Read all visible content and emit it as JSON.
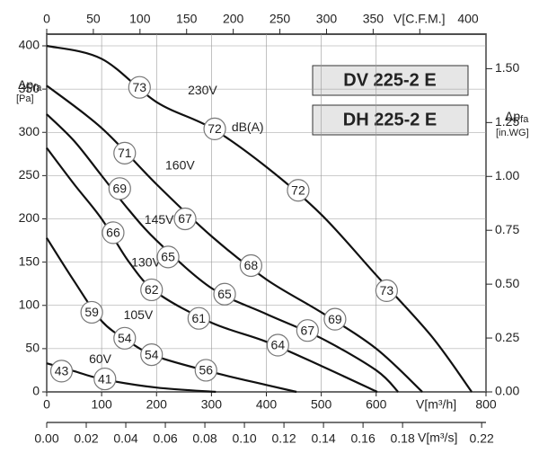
{
  "chart_data": {
    "type": "line",
    "xlim": [
      0,
      800
    ],
    "xticks": [
      0,
      100,
      200,
      300,
      400,
      500,
      600,
      800
    ],
    "xlabel": "V[m³/h]",
    "x2lim": [
      0,
      471
    ],
    "x2ticks": [
      0,
      50,
      100,
      150,
      200,
      250,
      300,
      350,
      400
    ],
    "x2label": "V[C.F.M.]",
    "x3lim": [
      0,
      0.2222
    ],
    "x3ticks": [
      {
        "value": 0,
        "label": "0.00"
      },
      0.02,
      0.04,
      0.06,
      0.08,
      {
        "value": 0.1,
        "label": "0.10"
      },
      0.12,
      0.14,
      0.16,
      0.18,
      0.22
    ],
    "x3label": "V[m³/s]",
    "ylim": [
      0,
      400
    ],
    "yticks": [
      0,
      50,
      100,
      150,
      200,
      250,
      300,
      350,
      400
    ],
    "ylabel": {
      "main": "Δp",
      "sub": "fa",
      "unit": "[Pa]"
    },
    "y2lim": [
      0,
      1.606
    ],
    "y2ticks": [
      {
        "value": 0,
        "label": "0.00"
      },
      0.25,
      {
        "value": 0.5,
        "label": "0.50"
      },
      0.75,
      {
        "value": 1,
        "label": "1.00"
      },
      1.25,
      {
        "value": 1.5,
        "label": "1.50"
      }
    ],
    "y2label": {
      "main": "Δp",
      "sub": "fa",
      "unit": "[in.WG]"
    },
    "grid": true,
    "color": "#111111",
    "models": [
      "DV 225-2 E",
      "DH 225-2 E"
    ],
    "series": [
      {
        "name": "230V",
        "name_at": [
          257,
          348
        ],
        "x": [
          0,
          100,
          200,
          300,
          400,
          500,
          600,
          700,
          774
        ],
        "values": [
          400,
          385,
          335,
          305,
          260,
          205,
          135,
          65,
          0
        ]
      },
      {
        "name": "160V",
        "name_at": [
          216,
          261
        ],
        "x": [
          0,
          100,
          200,
          300,
          400,
          500,
          600,
          684
        ],
        "values": [
          354,
          305,
          240,
          180,
          130,
          92,
          50,
          0
        ]
      },
      {
        "name": "145V",
        "name_at": [
          178,
          198
        ],
        "x": [
          0,
          50,
          100,
          150,
          200,
          300,
          400,
          500,
          600,
          640
        ],
        "values": [
          321,
          290,
          250,
          210,
          175,
          120,
          90,
          62,
          25,
          0
        ]
      },
      {
        "name": "130V",
        "name_at": [
          154,
          149
        ],
        "x": [
          0,
          50,
          100,
          150,
          200,
          300,
          400,
          500,
          602
        ],
        "values": [
          282,
          240,
          200,
          150,
          115,
          80,
          58,
          30,
          0
        ]
      },
      {
        "name": "105V",
        "name_at": [
          140,
          88
        ],
        "x": [
          0,
          50,
          100,
          150,
          200,
          300,
          400,
          455
        ],
        "values": [
          178,
          128,
          82,
          58,
          41,
          23,
          8,
          0
        ]
      },
      {
        "name": "60V",
        "name_at": [
          77,
          37
        ],
        "x": [
          0,
          50,
          100,
          200,
          308
        ],
        "values": [
          33,
          24,
          15,
          5,
          0
        ]
      }
    ],
    "unit_note": {
      "text": "dB(A)",
      "x": 366,
      "y": 305
    },
    "sound_levels": [
      {
        "value": 73,
        "x": 169,
        "y": 352
      },
      {
        "value": 72,
        "x": 306,
        "y": 304
      },
      {
        "value": 72,
        "x": 458,
        "y": 233
      },
      {
        "value": 73,
        "x": 619,
        "y": 117
      },
      {
        "value": 71,
        "x": 142,
        "y": 276
      },
      {
        "value": 67,
        "x": 252,
        "y": 200
      },
      {
        "value": 68,
        "x": 372,
        "y": 146
      },
      {
        "value": 69,
        "x": 525,
        "y": 84
      },
      {
        "value": 69,
        "x": 133,
        "y": 235
      },
      {
        "value": 65,
        "x": 221,
        "y": 156
      },
      {
        "value": 65,
        "x": 324,
        "y": 113
      },
      {
        "value": 67,
        "x": 475,
        "y": 71
      },
      {
        "value": 66,
        "x": 121,
        "y": 184
      },
      {
        "value": 62,
        "x": 191,
        "y": 118
      },
      {
        "value": 61,
        "x": 277,
        "y": 85
      },
      {
        "value": 64,
        "x": 421,
        "y": 54
      },
      {
        "value": 59,
        "x": 82,
        "y": 92
      },
      {
        "value": 54,
        "x": 142,
        "y": 62
      },
      {
        "value": 54,
        "x": 191,
        "y": 43
      },
      {
        "value": 56,
        "x": 290,
        "y": 25
      },
      {
        "value": 43,
        "x": 27,
        "y": 24
      },
      {
        "value": 41,
        "x": 106,
        "y": 15
      }
    ]
  }
}
